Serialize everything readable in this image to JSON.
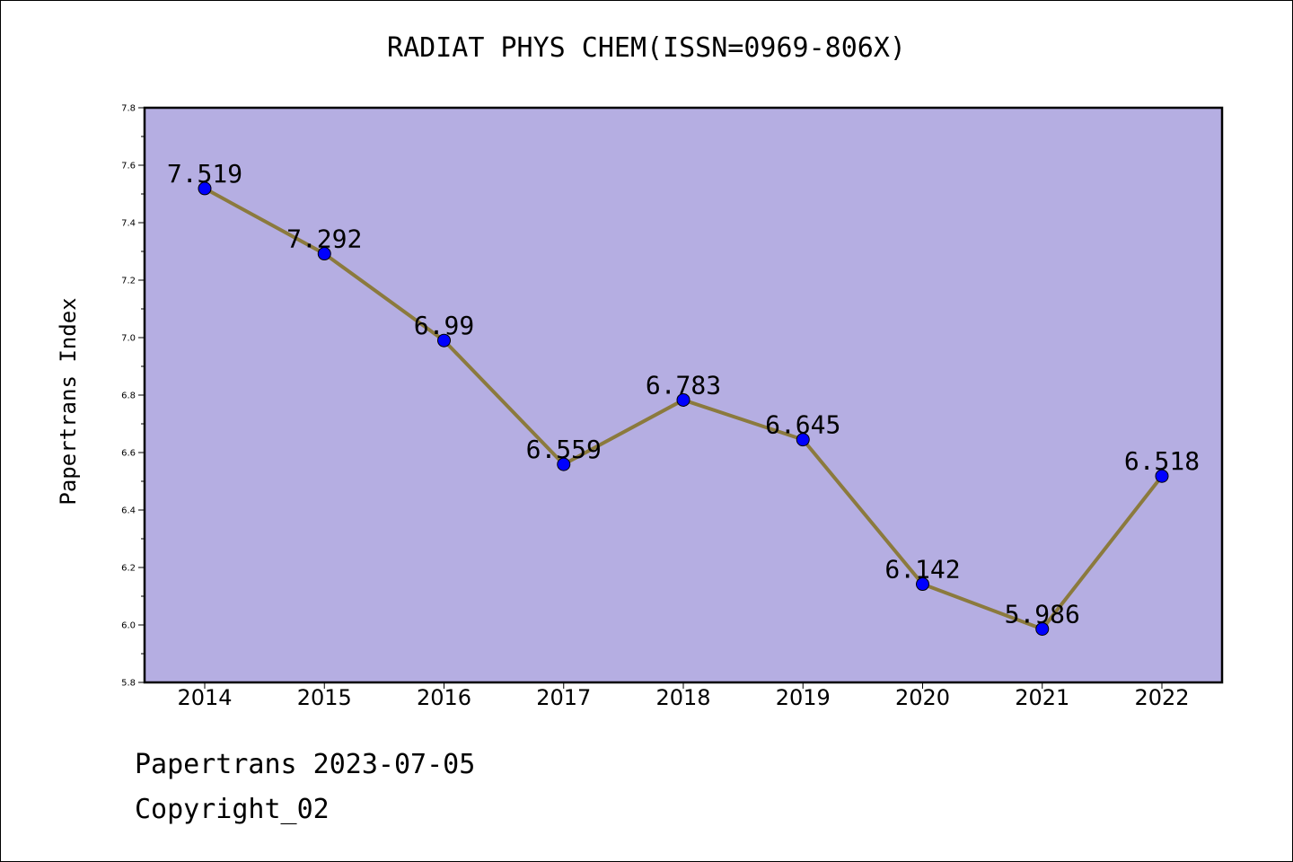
{
  "chart_data": {
    "type": "line",
    "title": "RADIAT PHYS CHEM(ISSN=0969-806X)",
    "xlabel": "",
    "ylabel": "Papertrans Index",
    "categories": [
      "2014",
      "2015",
      "2016",
      "2017",
      "2018",
      "2019",
      "2020",
      "2021",
      "2022"
    ],
    "series": [
      {
        "values": [
          7.519,
          7.292,
          6.99,
          6.559,
          6.783,
          6.645,
          6.142,
          5.986,
          6.518
        ],
        "labels": [
          "7.519",
          "7.292",
          "6.99",
          "6.559",
          "6.783",
          "6.645",
          "6.142",
          "5.986",
          "6.518"
        ],
        "line_color": "#8b7a3d",
        "marker_color": "#0000ff"
      }
    ],
    "ylim": [
      5.8,
      7.8
    ],
    "yticks": [
      "5.8",
      "6.0",
      "6.2",
      "6.4",
      "6.6",
      "6.8",
      "7.0",
      "7.2",
      "7.4",
      "7.6",
      "7.8"
    ],
    "plot_background": "#b5aee2",
    "grid": false,
    "legend": "none"
  },
  "footer": {
    "date_text": "Papertrans 2023-07-05",
    "copyright_text": "Copyright_02"
  }
}
